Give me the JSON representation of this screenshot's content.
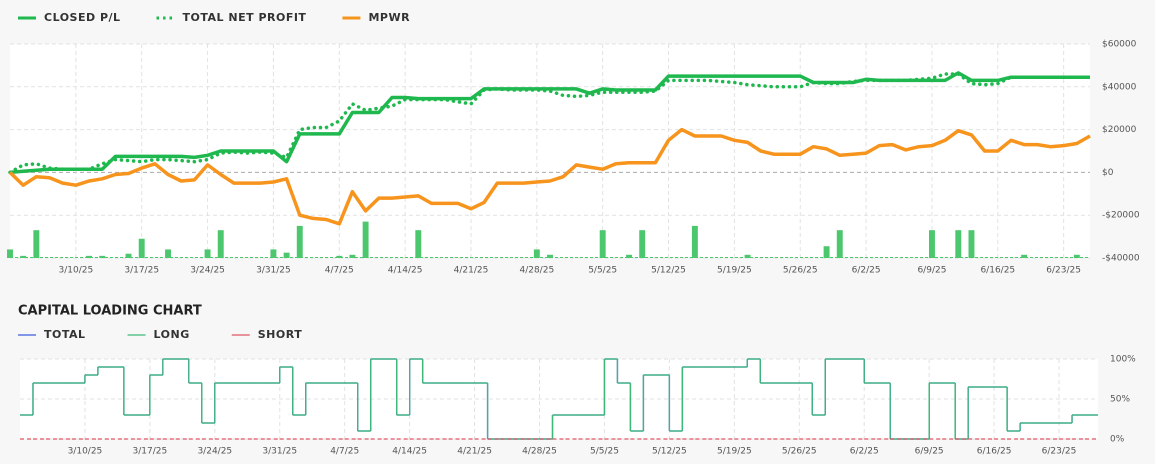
{
  "chart_data": [
    {
      "type": "line",
      "categories": [
        null,
        null,
        null,
        null,
        null,
        "3/10/25",
        null,
        null,
        null,
        null,
        "3/17/25",
        null,
        null,
        null,
        null,
        "3/24/25",
        null,
        null,
        null,
        null,
        "3/31/25",
        null,
        null,
        null,
        null,
        "4/7/25",
        null,
        null,
        null,
        null,
        "4/14/25",
        null,
        null,
        null,
        null,
        "4/21/25",
        null,
        null,
        null,
        null,
        "4/28/25",
        null,
        null,
        null,
        null,
        "5/5/25",
        null,
        null,
        null,
        null,
        "5/12/25",
        null,
        null,
        null,
        null,
        "5/19/25",
        null,
        null,
        null,
        null,
        "5/26/25",
        null,
        null,
        null,
        null,
        "6/2/25",
        null,
        null,
        null,
        null,
        "6/9/25",
        null,
        null,
        null,
        null,
        "6/16/25",
        null,
        null,
        null,
        null,
        "6/23/25",
        null,
        null
      ],
      "series": [
        {
          "name": "CLOSED P/L",
          "color": "#1fb84f",
          "style": "solid",
          "values": [
            0,
            500,
            1000,
            1500,
            1500,
            1500,
            1500,
            1500,
            7500,
            7500,
            7500,
            7500,
            7500,
            7500,
            7000,
            8000,
            10000,
            10000,
            10000,
            10000,
            10000,
            5000,
            18000,
            18000,
            18000,
            18000,
            28000,
            28000,
            28000,
            35000,
            35000,
            34500,
            34500,
            34500,
            34500,
            34500,
            39000,
            39000,
            39000,
            39000,
            39000,
            39000,
            39000,
            39000,
            37000,
            39000,
            38500,
            38500,
            38500,
            38500,
            45000,
            45000,
            45000,
            45000,
            45000,
            45000,
            45000,
            45000,
            45000,
            45000,
            45000,
            42000,
            42000,
            42000,
            42000,
            43500,
            43000,
            43000,
            43000,
            43000,
            43000,
            43000,
            46500,
            43000,
            43000,
            43000,
            44500,
            44500,
            44500,
            44500,
            44500,
            44500,
            44500
          ]
        },
        {
          "name": "TOTAL NET PROFIT",
          "color": "#1fb84f",
          "style": "dotted",
          "values": [
            0,
            3500,
            4000,
            2000,
            1500,
            1500,
            1500,
            4000,
            6000,
            5500,
            5000,
            6000,
            6000,
            5500,
            5000,
            6000,
            9000,
            9500,
            9000,
            9500,
            9000,
            7000,
            20000,
            21000,
            21000,
            24000,
            32000,
            29000,
            30000,
            31000,
            34000,
            34000,
            34000,
            34000,
            33000,
            32000,
            38500,
            39000,
            38500,
            38500,
            38500,
            38000,
            36000,
            35500,
            36000,
            37500,
            37500,
            37500,
            37500,
            38000,
            43000,
            43000,
            43000,
            43000,
            42500,
            42000,
            41000,
            40500,
            40000,
            40000,
            40000,
            42000,
            41500,
            41500,
            42500,
            43000,
            43000,
            43000,
            43000,
            43500,
            44000,
            46000,
            46000,
            41500,
            41000,
            41500,
            44500,
            44500,
            44500,
            44500,
            44500,
            44500,
            44500
          ]
        },
        {
          "name": "MPWR",
          "color": "#f7941d",
          "style": "solid",
          "values": [
            0,
            -6000,
            -2000,
            -2500,
            -5000,
            -6000,
            -4000,
            -3000,
            -1000,
            -500,
            2000,
            4000,
            -1000,
            -4000,
            -3500,
            3500,
            -1000,
            -5000,
            -5000,
            -5000,
            -4500,
            -3000,
            -20000,
            -21500,
            -22000,
            -24000,
            -9000,
            -18000,
            -12000,
            -12000,
            -11500,
            -11000,
            -14500,
            -14500,
            -14500,
            -17000,
            -14000,
            -5000,
            -5000,
            -5000,
            -4500,
            -4000,
            -2000,
            3500,
            2500,
            1500,
            4000,
            4500,
            4500,
            4500,
            15000,
            20000,
            17000,
            17000,
            17000,
            15000,
            14000,
            10000,
            8500,
            8500,
            8500,
            12000,
            11000,
            8000,
            8500,
            9000,
            12500,
            13000,
            10500,
            12000,
            12500,
            15000,
            19500,
            17500,
            10000,
            10000,
            15000,
            13000,
            13000,
            12000,
            12500,
            13500,
            17000
          ]
        }
      ],
      "bars": {
        "color": "#4cc76e",
        "values": [
          -36000,
          -39000,
          -27000,
          null,
          null,
          null,
          -39000,
          -39000,
          null,
          -38000,
          -31000,
          null,
          -36000,
          null,
          null,
          -36000,
          -27000,
          null,
          null,
          null,
          -36000,
          -37500,
          -25000,
          null,
          null,
          -39000,
          -38500,
          -23000,
          null,
          null,
          null,
          -27000,
          null,
          null,
          null,
          null,
          null,
          null,
          null,
          null,
          -36000,
          -38500,
          null,
          null,
          null,
          -27000,
          null,
          -38500,
          -27000,
          null,
          null,
          null,
          -25000,
          null,
          null,
          null,
          -38500,
          null,
          null,
          null,
          null,
          null,
          -34500,
          -27000,
          null,
          null,
          null,
          null,
          null,
          null,
          -27000,
          null,
          -27000,
          -27000,
          null,
          null,
          null,
          -38500,
          null,
          null,
          null,
          -38500,
          null
        ]
      },
      "ylim": [
        -40000,
        60000
      ],
      "yticks": [
        {
          "value": -40000,
          "label": "-$40000"
        },
        {
          "value": -20000,
          "label": "-$20000"
        },
        {
          "value": 0,
          "label": "$0"
        },
        {
          "value": 20000,
          "label": "$20000"
        },
        {
          "value": 40000,
          "label": "$40000"
        },
        {
          "value": 60000,
          "label": "$60000"
        }
      ],
      "grid": true
    },
    {
      "type": "step",
      "title": "CAPITAL LOADING CHART",
      "categories": [
        null,
        null,
        null,
        null,
        null,
        "3/10/25",
        null,
        null,
        null,
        null,
        "3/17/25",
        null,
        null,
        null,
        null,
        "3/24/25",
        null,
        null,
        null,
        null,
        "3/31/25",
        null,
        null,
        null,
        null,
        "4/7/25",
        null,
        null,
        null,
        null,
        "4/14/25",
        null,
        null,
        null,
        null,
        "4/21/25",
        null,
        null,
        null,
        null,
        "4/28/25",
        null,
        null,
        null,
        null,
        "5/5/25",
        null,
        null,
        null,
        null,
        "5/12/25",
        null,
        null,
        null,
        null,
        "5/19/25",
        null,
        null,
        null,
        null,
        "5/26/25",
        null,
        null,
        null,
        null,
        "6/2/25",
        null,
        null,
        null,
        null,
        "6/9/25",
        null,
        null,
        null,
        null,
        "6/16/25",
        null,
        null,
        null,
        null,
        "6/23/25",
        null,
        null
      ],
      "series": [
        {
          "name": "TOTAL",
          "color": "#3b5bdb",
          "style": "solid",
          "values": [
            30,
            70,
            70,
            70,
            70,
            80,
            90,
            90,
            30,
            30,
            80,
            100,
            100,
            70,
            20,
            70,
            70,
            70,
            70,
            70,
            90,
            30,
            70,
            70,
            70,
            70,
            10,
            100,
            100,
            30,
            100,
            70,
            70,
            70,
            70,
            70,
            0,
            0,
            0,
            0,
            0,
            30,
            30,
            30,
            30,
            100,
            70,
            10,
            80,
            80,
            10,
            90,
            90,
            90,
            90,
            90,
            100,
            70,
            70,
            70,
            70,
            30,
            100,
            100,
            100,
            70,
            70,
            0,
            0,
            0,
            70,
            70,
            0,
            65,
            65,
            65,
            10,
            20,
            20,
            20,
            20,
            30,
            30
          ]
        },
        {
          "name": "LONG",
          "color": "#3cb878",
          "style": "solid",
          "values": [
            30,
            70,
            70,
            70,
            70,
            80,
            90,
            90,
            30,
            30,
            80,
            100,
            100,
            70,
            20,
            70,
            70,
            70,
            70,
            70,
            90,
            30,
            70,
            70,
            70,
            70,
            10,
            100,
            100,
            30,
            100,
            70,
            70,
            70,
            70,
            70,
            0,
            0,
            0,
            0,
            0,
            30,
            30,
            30,
            30,
            100,
            70,
            10,
            80,
            80,
            10,
            90,
            90,
            90,
            90,
            90,
            100,
            70,
            70,
            70,
            70,
            30,
            100,
            100,
            100,
            70,
            70,
            0,
            0,
            0,
            70,
            70,
            0,
            65,
            65,
            65,
            10,
            20,
            20,
            20,
            20,
            30,
            30
          ]
        },
        {
          "name": "SHORT",
          "color": "#e05565",
          "style": "dashed",
          "values": [
            0,
            0,
            0,
            0,
            0,
            0,
            0,
            0,
            0,
            0,
            0,
            0,
            0,
            0,
            0,
            0,
            0,
            0,
            0,
            0,
            0,
            0,
            0,
            0,
            0,
            0,
            0,
            0,
            0,
            0,
            0,
            0,
            0,
            0,
            0,
            0,
            0,
            0,
            0,
            0,
            0,
            0,
            0,
            0,
            0,
            0,
            0,
            0,
            0,
            0,
            0,
            0,
            0,
            0,
            0,
            0,
            0,
            0,
            0,
            0,
            0,
            0,
            0,
            0,
            0,
            0,
            0,
            0,
            0,
            0,
            0,
            0,
            0,
            0,
            0,
            0,
            0,
            0,
            0,
            0,
            0,
            0,
            0
          ]
        }
      ],
      "ylim": [
        0,
        100
      ],
      "yticks": [
        {
          "value": 0,
          "label": "0%"
        },
        {
          "value": 50,
          "label": "50%"
        },
        {
          "value": 100,
          "label": "100%"
        }
      ],
      "grid": true
    }
  ]
}
